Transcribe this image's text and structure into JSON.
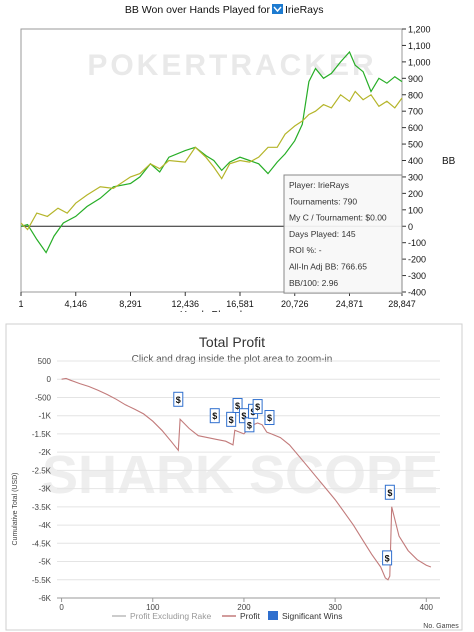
{
  "chart_data": [
    {
      "type": "line",
      "title_prefix": "BB Won over Hands Played for",
      "player_name": "IrieRays",
      "watermark": "POKERTRACKER",
      "x_ticks": [
        "1",
        "4,146",
        "8,291",
        "12,436",
        "16,581",
        "20,726",
        "24,871",
        "28,847"
      ],
      "x_ticks_values": [
        1,
        4146,
        8291,
        12436,
        16581,
        20726,
        24871,
        28847
      ],
      "xlabel_partial": "Hands Played",
      "y_ticks": [
        "1,200",
        "1,100",
        "1,000",
        "900",
        "800",
        "700",
        "600",
        "500",
        "400",
        "300",
        "200",
        "100",
        "0",
        "-100",
        "-200",
        "-300",
        "-400"
      ],
      "ylim": [
        -400,
        1200
      ],
      "xlim": [
        1,
        28847
      ],
      "ylabel": "BB",
      "colors": {
        "series_a": "#27ae27",
        "series_b": "#b5b52a"
      },
      "series": [
        {
          "key": "series_a",
          "points": [
            [
              1,
              0
            ],
            [
              500,
              10
            ],
            [
              1200,
              -80
            ],
            [
              1900,
              -160
            ],
            [
              2500,
              -60
            ],
            [
              3200,
              20
            ],
            [
              4146,
              60
            ],
            [
              5000,
              120
            ],
            [
              6000,
              170
            ],
            [
              7000,
              240
            ],
            [
              8291,
              260
            ],
            [
              9000,
              300
            ],
            [
              9800,
              380
            ],
            [
              10500,
              330
            ],
            [
              11200,
              420
            ],
            [
              12436,
              460
            ],
            [
              13200,
              480
            ],
            [
              14000,
              430
            ],
            [
              14600,
              400
            ],
            [
              15200,
              340
            ],
            [
              15800,
              390
            ],
            [
              16581,
              420
            ],
            [
              17300,
              400
            ],
            [
              18000,
              380
            ],
            [
              18700,
              320
            ],
            [
              19400,
              390
            ],
            [
              20000,
              440
            ],
            [
              20726,
              520
            ],
            [
              21300,
              620
            ],
            [
              21800,
              880
            ],
            [
              22300,
              960
            ],
            [
              22900,
              900
            ],
            [
              23500,
              930
            ],
            [
              24200,
              1000
            ],
            [
              24871,
              1060
            ],
            [
              25300,
              980
            ],
            [
              25900,
              940
            ],
            [
              26500,
              820
            ],
            [
              27100,
              900
            ],
            [
              27700,
              870
            ],
            [
              28300,
              910
            ],
            [
              28847,
              880
            ]
          ]
        },
        {
          "key": "series_b",
          "points": [
            [
              1,
              20
            ],
            [
              500,
              -20
            ],
            [
              1200,
              80
            ],
            [
              2000,
              60
            ],
            [
              2800,
              110
            ],
            [
              3500,
              80
            ],
            [
              4146,
              140
            ],
            [
              5000,
              190
            ],
            [
              6000,
              240
            ],
            [
              7000,
              230
            ],
            [
              8291,
              300
            ],
            [
              9000,
              320
            ],
            [
              9800,
              380
            ],
            [
              10500,
              350
            ],
            [
              11200,
              400
            ],
            [
              12436,
              390
            ],
            [
              13200,
              480
            ],
            [
              14000,
              420
            ],
            [
              14600,
              360
            ],
            [
              15200,
              290
            ],
            [
              15800,
              380
            ],
            [
              16581,
              400
            ],
            [
              17300,
              390
            ],
            [
              18000,
              420
            ],
            [
              18700,
              480
            ],
            [
              19400,
              480
            ],
            [
              20000,
              560
            ],
            [
              20726,
              610
            ],
            [
              21300,
              640
            ],
            [
              21800,
              680
            ],
            [
              22300,
              700
            ],
            [
              22900,
              740
            ],
            [
              23500,
              720
            ],
            [
              24200,
              800
            ],
            [
              24871,
              760
            ],
            [
              25300,
              820
            ],
            [
              25900,
              770
            ],
            [
              26500,
              800
            ],
            [
              27100,
              730
            ],
            [
              27700,
              760
            ],
            [
              28300,
              720
            ],
            [
              28847,
              780
            ]
          ]
        }
      ],
      "tooltip_lines": [
        "Player: IrieRays",
        "Tournaments: 790",
        "My C / Tournament: $0.00",
        "Days Played: 145",
        "ROI %: -",
        "All-In Adj BB: 766.65",
        "BB/100: 2.96"
      ]
    },
    {
      "type": "line",
      "title": "Total Profit",
      "subtitle": "Click and drag inside the plot area to zoom-in",
      "watermark": "SHARK SCOPE",
      "ylabel": "Cumulative Total (USD)",
      "xlabel": "No. Games",
      "y_ticks": [
        "500",
        "0",
        "-500",
        "-1K",
        "-1.5K",
        "-2K",
        "-2.5K",
        "-3K",
        "-3.5K",
        "-4K",
        "-4.5K",
        "-5K",
        "-5.5K",
        "-6K"
      ],
      "ylim": [
        -6000,
        500
      ],
      "x_ticks": [
        "0",
        "100",
        "200",
        "300",
        "400"
      ],
      "x_ticks_values": [
        0,
        100,
        200,
        300,
        400
      ],
      "xlim": [
        -5,
        415
      ],
      "colors": {
        "profit": "#c27b7b",
        "profit_ex_rake": "#bbbbbb",
        "sig_win": "#2f6fce"
      },
      "profit_points": [
        [
          0,
          0
        ],
        [
          5,
          20
        ],
        [
          10,
          -30
        ],
        [
          20,
          -120
        ],
        [
          30,
          -200
        ],
        [
          40,
          -300
        ],
        [
          50,
          -420
        ],
        [
          60,
          -550
        ],
        [
          70,
          -700
        ],
        [
          80,
          -820
        ],
        [
          90,
          -950
        ],
        [
          100,
          -1150
        ],
        [
          110,
          -1400
        ],
        [
          120,
          -1700
        ],
        [
          128,
          -1950
        ],
        [
          130,
          -1100
        ],
        [
          140,
          -1350
        ],
        [
          150,
          -1550
        ],
        [
          160,
          -1600
        ],
        [
          170,
          -1650
        ],
        [
          180,
          -1700
        ],
        [
          188,
          -1800
        ],
        [
          190,
          -1400
        ],
        [
          200,
          -1500
        ],
        [
          205,
          -1350
        ],
        [
          210,
          -1250
        ],
        [
          215,
          -1200
        ],
        [
          220,
          -1250
        ],
        [
          225,
          -1450
        ],
        [
          230,
          -1500
        ],
        [
          240,
          -1600
        ],
        [
          250,
          -1800
        ],
        [
          260,
          -2100
        ],
        [
          270,
          -2400
        ],
        [
          280,
          -2700
        ],
        [
          290,
          -3000
        ],
        [
          300,
          -3300
        ],
        [
          310,
          -3650
        ],
        [
          320,
          -4000
        ],
        [
          330,
          -4400
        ],
        [
          340,
          -4800
        ],
        [
          350,
          -5150
        ],
        [
          355,
          -5450
        ],
        [
          358,
          -5500
        ],
        [
          360,
          -5400
        ],
        [
          362,
          -3500
        ],
        [
          370,
          -4300
        ],
        [
          380,
          -4700
        ],
        [
          390,
          -4950
        ],
        [
          400,
          -5100
        ],
        [
          405,
          -5150
        ]
      ],
      "significant_wins": [
        [
          128,
          -550
        ],
        [
          168,
          -1000
        ],
        [
          186,
          -1100
        ],
        [
          193,
          -720
        ],
        [
          200,
          -1000
        ],
        [
          206,
          -1250
        ],
        [
          210,
          -880
        ],
        [
          215,
          -750
        ],
        [
          228,
          -1050
        ],
        [
          360,
          -3100
        ],
        [
          357,
          -4900
        ]
      ],
      "legend": [
        "Profit Excluding Rake",
        "Profit",
        "Significant Wins"
      ],
      "badge": "$"
    }
  ]
}
